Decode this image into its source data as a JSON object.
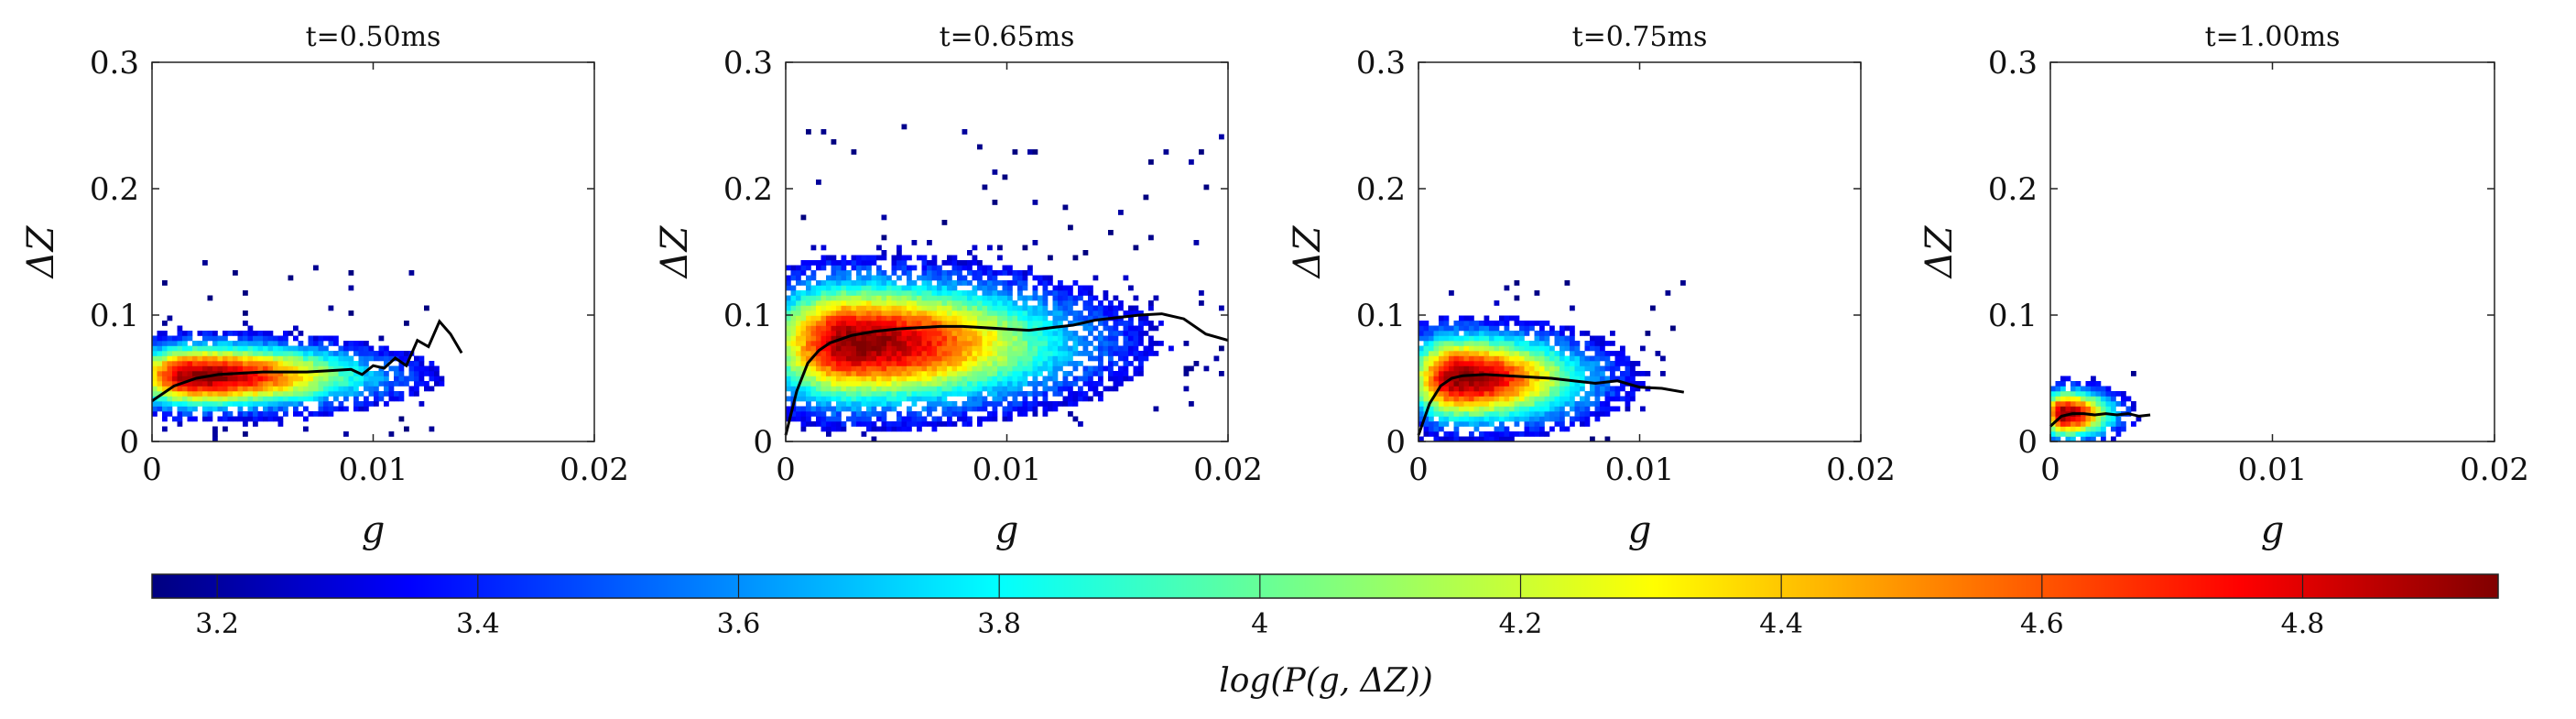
{
  "chart_data": {
    "type": "heatmap",
    "panels": [
      {
        "title": "t=0.50ms",
        "xlabel": "g",
        "ylabel": "ΔZ",
        "xlim": [
          0,
          0.02
        ],
        "ylim": [
          0,
          0.3
        ],
        "xticks": [
          "0",
          "0.01",
          "0.02"
        ],
        "yticks": [
          "0",
          "0.1",
          "0.2",
          "0.3"
        ],
        "density": {
          "peak_x": 0.002,
          "peak_y": 0.052,
          "spread_x": 0.004,
          "spread_y": 0.013,
          "max_x": 0.013,
          "max_y": 0.14
        },
        "mean_line": {
          "x": [
            0.0,
            0.001,
            0.002,
            0.003,
            0.004,
            0.005,
            0.006,
            0.007,
            0.008,
            0.009,
            0.0095,
            0.01,
            0.0105,
            0.011,
            0.0115,
            0.012,
            0.0125,
            0.013,
            0.0135,
            0.014
          ],
          "y": [
            0.032,
            0.044,
            0.05,
            0.053,
            0.054,
            0.055,
            0.055,
            0.055,
            0.056,
            0.057,
            0.053,
            0.06,
            0.058,
            0.066,
            0.06,
            0.08,
            0.075,
            0.095,
            0.085,
            0.07
          ]
        }
      },
      {
        "title": "t=0.65ms",
        "xlabel": "g",
        "ylabel": "ΔZ",
        "xlim": [
          0,
          0.02
        ],
        "ylim": [
          0,
          0.3
        ],
        "xticks": [
          "0",
          "0.01",
          "0.02"
        ],
        "yticks": [
          "0",
          "0.1",
          "0.2",
          "0.3"
        ],
        "density": {
          "peak_x": 0.003,
          "peak_y": 0.078,
          "spread_x": 0.005,
          "spread_y": 0.025,
          "max_x": 0.02,
          "max_y": 0.25
        },
        "mean_line": {
          "x": [
            0.0,
            0.0005,
            0.001,
            0.0015,
            0.002,
            0.003,
            0.004,
            0.005,
            0.006,
            0.007,
            0.008,
            0.009,
            0.01,
            0.011,
            0.012,
            0.013,
            0.014,
            0.015,
            0.016,
            0.017,
            0.018,
            0.019,
            0.02
          ],
          "y": [
            0.005,
            0.04,
            0.062,
            0.072,
            0.078,
            0.084,
            0.087,
            0.089,
            0.09,
            0.091,
            0.091,
            0.09,
            0.089,
            0.088,
            0.09,
            0.092,
            0.096,
            0.098,
            0.1,
            0.101,
            0.097,
            0.085,
            0.08
          ]
        }
      },
      {
        "title": "t=0.75ms",
        "xlabel": "g",
        "ylabel": "ΔZ",
        "xlim": [
          0,
          0.02
        ],
        "ylim": [
          0,
          0.3
        ],
        "xticks": [
          "0",
          "0.01",
          "0.02"
        ],
        "yticks": [
          "0",
          "0.1",
          "0.2",
          "0.3"
        ],
        "density": {
          "peak_x": 0.0018,
          "peak_y": 0.05,
          "spread_x": 0.003,
          "spread_y": 0.018,
          "max_x": 0.012,
          "max_y": 0.125
        },
        "mean_line": {
          "x": [
            0.0,
            0.0005,
            0.001,
            0.0015,
            0.002,
            0.003,
            0.004,
            0.005,
            0.006,
            0.007,
            0.008,
            0.009,
            0.01,
            0.011,
            0.012
          ],
          "y": [
            0.005,
            0.03,
            0.044,
            0.05,
            0.052,
            0.053,
            0.052,
            0.051,
            0.05,
            0.048,
            0.046,
            0.048,
            0.043,
            0.042,
            0.039
          ]
        }
      },
      {
        "title": "t=1.00ms",
        "xlabel": "g",
        "ylabel": "ΔZ",
        "xlim": [
          0,
          0.02
        ],
        "ylim": [
          0,
          0.3
        ],
        "xticks": [
          "0",
          "0.01",
          "0.02"
        ],
        "yticks": [
          "0",
          "0.1",
          "0.2",
          "0.3"
        ],
        "density": {
          "peak_x": 0.0006,
          "peak_y": 0.022,
          "spread_x": 0.0012,
          "spread_y": 0.01,
          "max_x": 0.0045,
          "max_y": 0.055
        },
        "mean_line": {
          "x": [
            0.0,
            0.0005,
            0.001,
            0.0015,
            0.002,
            0.0025,
            0.003,
            0.0035,
            0.004,
            0.0045
          ],
          "y": [
            0.012,
            0.02,
            0.022,
            0.022,
            0.021,
            0.022,
            0.021,
            0.022,
            0.02,
            0.021
          ]
        }
      }
    ],
    "colorbar": {
      "label": "log(P(g, ΔZ))",
      "range": [
        3.15,
        4.95
      ],
      "ticks": [
        "3.2",
        "3.4",
        "3.6",
        "3.8",
        "4",
        "4.2",
        "4.4",
        "4.6",
        "4.8"
      ],
      "tick_values": [
        3.2,
        3.4,
        3.6,
        3.8,
        4.0,
        4.2,
        4.4,
        4.6,
        4.8
      ],
      "colormap": "jet"
    }
  }
}
